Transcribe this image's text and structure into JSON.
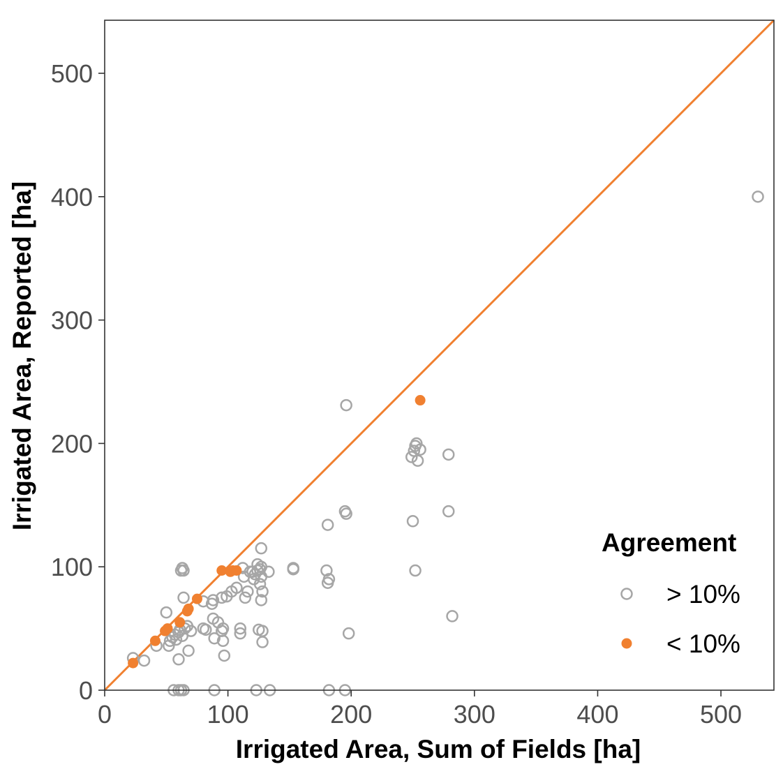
{
  "chart_data": {
    "type": "scatter",
    "title": "",
    "xlabel": "Irrigated Area, Sum of Fields [ha]",
    "ylabel": "Irrigated Area, Reported [ha]",
    "xlim": [
      0,
      543
    ],
    "ylim": [
      0,
      543
    ],
    "x_ticks": [
      "0",
      "100",
      "200",
      "300",
      "400",
      "500"
    ],
    "y_ticks": [
      "0",
      "100",
      "200",
      "300",
      "400",
      "500"
    ],
    "grid": false,
    "reference_line": {
      "type": "identity",
      "color": "#f08030"
    },
    "legend": {
      "title": "Agreement",
      "position": "bottom-right",
      "entries": [
        "> 10%",
        "< 10%"
      ]
    },
    "series": [
      {
        "name": "> 10%",
        "marker": "open-circle",
        "color": "#a6a6a6",
        "points": [
          [
            23,
            26
          ],
          [
            32,
            24
          ],
          [
            42,
            36
          ],
          [
            50,
            63
          ],
          [
            52,
            36
          ],
          [
            53,
            40
          ],
          [
            55,
            43
          ],
          [
            57,
            45
          ],
          [
            58,
            41
          ],
          [
            60,
            25
          ],
          [
            60,
            47
          ],
          [
            61,
            49
          ],
          [
            63,
            44
          ],
          [
            62,
            97
          ],
          [
            63,
            99
          ],
          [
            64,
            97
          ],
          [
            64,
            75
          ],
          [
            65,
            50
          ],
          [
            67,
            52
          ],
          [
            68,
            32
          ],
          [
            70,
            48
          ],
          [
            80,
            72
          ],
          [
            80,
            50
          ],
          [
            82,
            49
          ],
          [
            87,
            70
          ],
          [
            88,
            73
          ],
          [
            88,
            58
          ],
          [
            89,
            42
          ],
          [
            92,
            55
          ],
          [
            95,
            48
          ],
          [
            95,
            75
          ],
          [
            96,
            50
          ],
          [
            96,
            40
          ],
          [
            97,
            28
          ],
          [
            99,
            76
          ],
          [
            103,
            80
          ],
          [
            107,
            83
          ],
          [
            110,
            50
          ],
          [
            110,
            46
          ],
          [
            112,
            99
          ],
          [
            113,
            92
          ],
          [
            114,
            75
          ],
          [
            116,
            80
          ],
          [
            118,
            96
          ],
          [
            120,
            96
          ],
          [
            121,
            90
          ],
          [
            122,
            94
          ],
          [
            124,
            102
          ],
          [
            124,
            97
          ],
          [
            125,
            49
          ],
          [
            126,
            98
          ],
          [
            126,
            86
          ],
          [
            127,
            100
          ],
          [
            127,
            73
          ],
          [
            127,
            92
          ],
          [
            127,
            115
          ],
          [
            128,
            80
          ],
          [
            128,
            39
          ],
          [
            128,
            48
          ],
          [
            133,
            96
          ],
          [
            153,
            98
          ],
          [
            153,
            99
          ],
          [
            180,
            97
          ],
          [
            181,
            87
          ],
          [
            182,
            90
          ],
          [
            181,
            134
          ],
          [
            195,
            145
          ],
          [
            196,
            143
          ],
          [
            196,
            231
          ],
          [
            198,
            46
          ],
          [
            249,
            189
          ],
          [
            250,
            137
          ],
          [
            251,
            194
          ],
          [
            252,
            198
          ],
          [
            253,
            200
          ],
          [
            252,
            97
          ],
          [
            254,
            186
          ],
          [
            256,
            195
          ],
          [
            279,
            191
          ],
          [
            279,
            145
          ],
          [
            282,
            60
          ],
          [
            530,
            400
          ],
          [
            56,
            0
          ],
          [
            60,
            0
          ],
          [
            62,
            0
          ],
          [
            64,
            0
          ],
          [
            89,
            0
          ],
          [
            123,
            0
          ],
          [
            134,
            0
          ],
          [
            182,
            0
          ],
          [
            195,
            0
          ]
        ]
      },
      {
        "name": "< 10%",
        "marker": "filled-circle",
        "color": "#f08030",
        "points": [
          [
            23,
            22
          ],
          [
            41,
            40
          ],
          [
            49,
            48
          ],
          [
            51,
            50
          ],
          [
            61,
            55
          ],
          [
            67,
            64
          ],
          [
            68,
            66
          ],
          [
            75,
            74
          ],
          [
            95,
            97
          ],
          [
            102,
            96
          ],
          [
            104,
            97
          ],
          [
            107,
            97
          ],
          [
            256,
            235
          ]
        ]
      }
    ]
  }
}
